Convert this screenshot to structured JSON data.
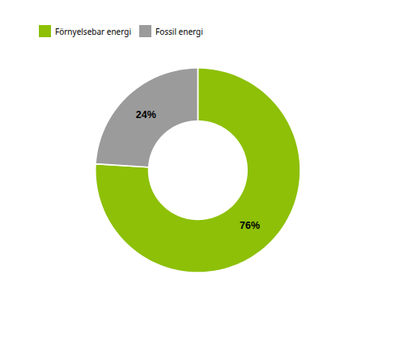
{
  "chart_data": {
    "type": "donut",
    "categories": [
      "Förnyelsebar energi",
      "Fossil energi"
    ],
    "values": [
      76,
      24
    ],
    "value_labels": [
      "76%",
      "24%"
    ],
    "colors": [
      "#8dc007",
      "#9b9b9b"
    ],
    "data_labels": true,
    "legend": "upper left"
  }
}
